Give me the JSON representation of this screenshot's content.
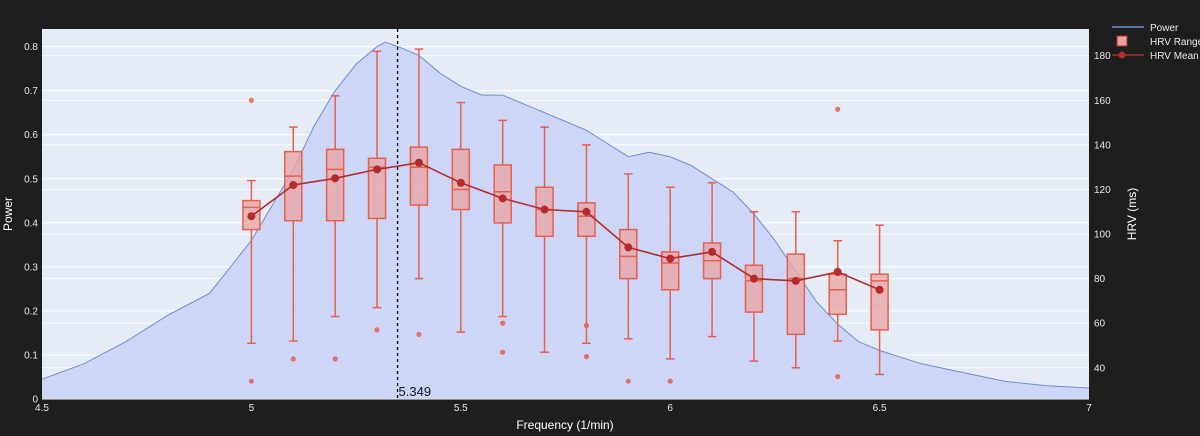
{
  "chart_data": {
    "type": "box",
    "xlabel": "Frequency (1/min)",
    "ylabel_left": "Power",
    "ylabel_right": "HRV (ms)",
    "xlim": [
      4.5,
      7
    ],
    "ylim_left": [
      0,
      0.84
    ],
    "ylim_right": [
      26,
      192
    ],
    "x_ticks": [
      "4.5",
      "5",
      "5.5",
      "6",
      "6.5",
      "7"
    ],
    "y_left_ticks": [
      "0",
      "0.1",
      "0.2",
      "0.3",
      "0.4",
      "0.5",
      "0.6",
      "0.7",
      "0.8"
    ],
    "y_right_ticks": [
      "40",
      "60",
      "80",
      "100",
      "120",
      "140",
      "160",
      "180"
    ],
    "grid": true,
    "legend_position": "top-right",
    "legend": [
      "Power",
      "HRV Range",
      "HRV Mean"
    ],
    "colors": {
      "background": "#e5ecf6",
      "paper": "#1e1e1e",
      "power_fill": "#c9d2f7",
      "power_line": "#6f8fcf",
      "box_fill": "#e8a3a0",
      "box_line": "#e5604e",
      "mean_line": "#b52a2a"
    },
    "annotation": {
      "x": 5.349,
      "label": "5.349"
    },
    "power": {
      "x": [
        4.5,
        4.6,
        4.7,
        4.8,
        4.9,
        4.95,
        5.0,
        5.05,
        5.1,
        5.15,
        5.2,
        5.25,
        5.3,
        5.32,
        5.35,
        5.4,
        5.45,
        5.5,
        5.55,
        5.6,
        5.65,
        5.7,
        5.75,
        5.8,
        5.85,
        5.9,
        5.95,
        6.0,
        6.05,
        6.1,
        6.15,
        6.2,
        6.25,
        6.3,
        6.35,
        6.4,
        6.45,
        6.5,
        6.6,
        6.7,
        6.8,
        6.9,
        7.0
      ],
      "y": [
        0.045,
        0.08,
        0.13,
        0.19,
        0.24,
        0.3,
        0.36,
        0.44,
        0.52,
        0.62,
        0.7,
        0.76,
        0.8,
        0.81,
        0.8,
        0.78,
        0.74,
        0.71,
        0.69,
        0.69,
        0.67,
        0.65,
        0.63,
        0.61,
        0.58,
        0.55,
        0.56,
        0.55,
        0.53,
        0.5,
        0.47,
        0.42,
        0.36,
        0.29,
        0.22,
        0.17,
        0.13,
        0.11,
        0.08,
        0.06,
        0.04,
        0.03,
        0.025
      ]
    },
    "hrv_boxes": [
      {
        "x": 5.0,
        "low": 51,
        "q1": 102,
        "median": 112,
        "q3": 115,
        "high": 124,
        "mean": 108,
        "outliers": [
          34,
          160
        ]
      },
      {
        "x": 5.1,
        "low": 52,
        "q1": 106,
        "median": 126,
        "q3": 137,
        "high": 148,
        "mean": 122,
        "outliers": [
          44
        ]
      },
      {
        "x": 5.2,
        "low": 63,
        "q1": 106,
        "median": 129,
        "q3": 138,
        "high": 162,
        "mean": 125,
        "outliers": [
          44
        ]
      },
      {
        "x": 5.3,
        "low": 67,
        "q1": 107,
        "median": 130,
        "q3": 134,
        "high": 182,
        "mean": 129,
        "outliers": [
          57
        ]
      },
      {
        "x": 5.4,
        "low": 80,
        "q1": 113,
        "median": 130,
        "q3": 139,
        "high": 183,
        "mean": 132,
        "outliers": [
          55
        ]
      },
      {
        "x": 5.5,
        "low": 56,
        "q1": 111,
        "median": 120,
        "q3": 138,
        "high": 159,
        "mean": 123,
        "outliers": []
      },
      {
        "x": 5.6,
        "low": 63,
        "q1": 105,
        "median": 119,
        "q3": 131,
        "high": 151,
        "mean": 116,
        "outliers": [
          47,
          60
        ]
      },
      {
        "x": 5.7,
        "low": 47,
        "q1": 99,
        "median": 111,
        "q3": 121,
        "high": 148,
        "mean": 111,
        "outliers": []
      },
      {
        "x": 5.8,
        "low": 51,
        "q1": 99,
        "median": 108,
        "q3": 114,
        "high": 140,
        "mean": 110,
        "outliers": [
          45,
          59
        ]
      },
      {
        "x": 5.9,
        "low": 53,
        "q1": 80,
        "median": 90,
        "q3": 102,
        "high": 127,
        "mean": 94,
        "outliers": [
          34
        ]
      },
      {
        "x": 6.0,
        "low": 44,
        "q1": 75,
        "median": 87,
        "q3": 92,
        "high": 121,
        "mean": 89,
        "outliers": [
          34
        ]
      },
      {
        "x": 6.1,
        "low": 54,
        "q1": 80,
        "median": 88,
        "q3": 96,
        "high": 123,
        "mean": 92,
        "outliers": []
      },
      {
        "x": 6.2,
        "low": 43,
        "q1": 65,
        "median": 79,
        "q3": 86,
        "high": 110,
        "mean": 80,
        "outliers": []
      },
      {
        "x": 6.3,
        "low": 40,
        "q1": 55,
        "median": 80,
        "q3": 91,
        "high": 110,
        "mean": 79,
        "outliers": []
      },
      {
        "x": 6.4,
        "low": 52,
        "q1": 64,
        "median": 75,
        "q3": 82,
        "high": 97,
        "mean": 83,
        "outliers": [
          36,
          156
        ]
      },
      {
        "x": 6.5,
        "low": 37,
        "q1": 57,
        "median": 79,
        "q3": 82,
        "high": 104,
        "mean": 75,
        "outliers": []
      }
    ]
  }
}
